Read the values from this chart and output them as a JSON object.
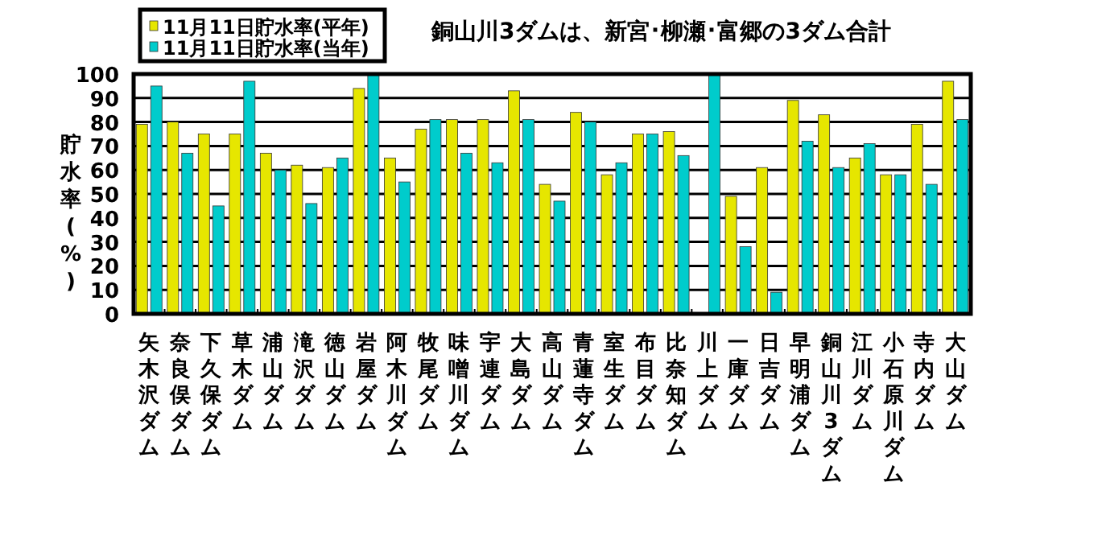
{
  "chart_data": {
    "type": "bar",
    "title": "銅山川3ダムは、新宮･柳瀬･富郷の3ダム合計",
    "ylabel": "貯水率(%)",
    "categories": [
      "矢木沢ダム",
      "奈良俣ダム",
      "下久保ダム",
      "草木ダム",
      "浦山ダム",
      "滝沢ダム",
      "徳山ダム",
      "岩屋ダム",
      "阿木川ダム",
      "牧尾ダム",
      "味噌川ダム",
      "宇連ダム",
      "大島ダム",
      "高山ダム",
      "青蓮寺ダム",
      "室生ダム",
      "布目ダム",
      "比奈知ダム",
      "川上ダム",
      "一庫ダム",
      "日吉ダム",
      "早明浦ダム",
      "銅山川3ダム",
      "江川ダム",
      "小石原川ダム",
      "寺内ダム",
      "大山ダム"
    ],
    "series": [
      {
        "name": "11月11日貯水率(平年)",
        "color": "#e6e600",
        "values": [
          79,
          80,
          75,
          75,
          67,
          62,
          61,
          94,
          65,
          77,
          81,
          81,
          93,
          54,
          84,
          58,
          75,
          76,
          null,
          49,
          61,
          89,
          83,
          65,
          58,
          79,
          97
        ]
      },
      {
        "name": "11月11日貯水率(当年)",
        "color": "#00cccc",
        "values": [
          95,
          67,
          45,
          97,
          60,
          46,
          65,
          100,
          55,
          81,
          67,
          63,
          81,
          47,
          80,
          63,
          75,
          66,
          100,
          28,
          9,
          72,
          61,
          71,
          58,
          54,
          81
        ]
      }
    ],
    "ylim": [
      0,
      100
    ],
    "yticks": [
      0,
      10,
      20,
      30,
      40,
      50,
      60,
      70,
      80,
      90,
      100
    ],
    "grid": "y",
    "legend": "top left"
  }
}
